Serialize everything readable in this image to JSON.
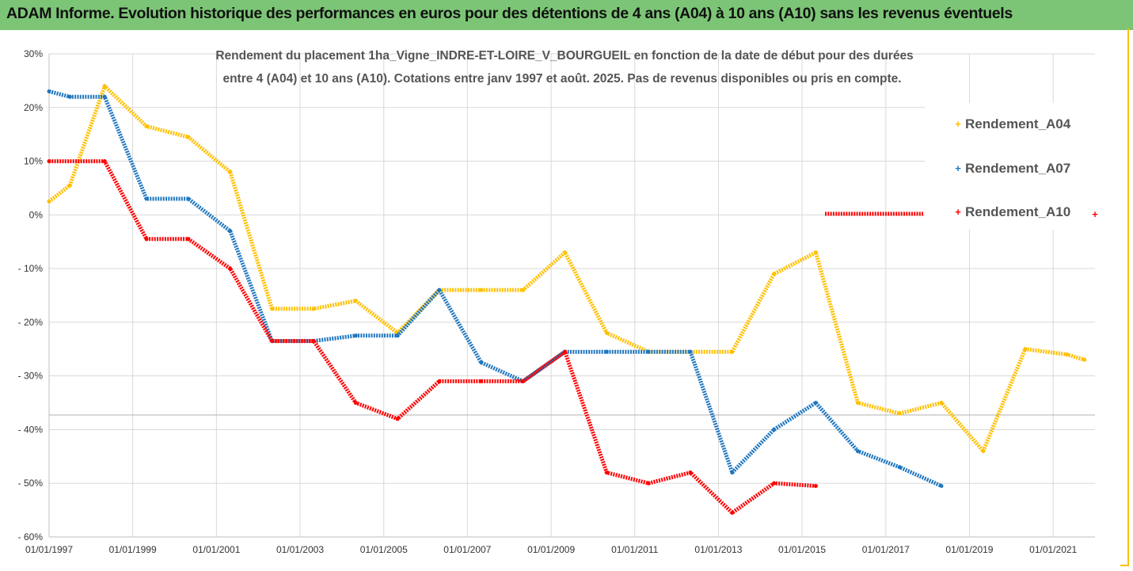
{
  "header": {
    "title": "ADAM Informe. Evolution historique des performances en euros pour des détentions de 4 ans (A04) à 10 ans (A10) sans les revenus éventuels"
  },
  "colors": {
    "header_bg": "#7cc576",
    "A04": "#ffc000",
    "A07": "#1f77c0",
    "A10": "#ff0000",
    "grid": "#d9d9d9"
  },
  "chart_data": {
    "type": "line",
    "subtitle_lines": [
      "Rendement du placement 1ha_Vigne_INDRE-ET-LOIRE_V_BOURGUEIL en fonction de la date de début pour des durées",
      "entre 4 (A04) et 10 ans (A10). Cotations entre janv 1997 et août. 2025. Pas de revenus disponibles ou pris en compte."
    ],
    "x_tick_labels": [
      "01/01/1997",
      "01/01/1999",
      "01/01/2001",
      "01/01/2003",
      "01/01/2005",
      "01/01/2007",
      "01/01/2009",
      "01/01/2011",
      "01/01/2013",
      "01/01/2015",
      "01/01/2017",
      "01/01/2019",
      "01/01/2021"
    ],
    "y_tick_labels": [
      "30%",
      "20%",
      "10%",
      "0%",
      "- 10%",
      "- 20%",
      "- 30%",
      "- 40%",
      "- 50%",
      "- 60%"
    ],
    "xlim": [
      "1997-01-01",
      "2022-01-01"
    ],
    "ylim": [
      -60,
      30
    ],
    "legend_position": "right",
    "series": [
      {
        "name": "Rendement_A04",
        "color": "#ffc000",
        "points": [
          [
            "1997-01-01",
            2.5
          ],
          [
            "1997-07-01",
            5.5
          ],
          [
            "1998-05-01",
            24
          ],
          [
            "1999-05-01",
            16.5
          ],
          [
            "2000-05-01",
            14.5
          ],
          [
            "2001-05-01",
            8
          ],
          [
            "2002-05-01",
            -17.5
          ],
          [
            "2003-05-01",
            -17.5
          ],
          [
            "2004-05-01",
            -16
          ],
          [
            "2005-05-01",
            -22
          ],
          [
            "2006-05-01",
            -14
          ],
          [
            "2007-05-01",
            -14
          ],
          [
            "2008-05-01",
            -14
          ],
          [
            "2009-05-01",
            -7
          ],
          [
            "2010-05-01",
            -22
          ],
          [
            "2011-05-01",
            -25.5
          ],
          [
            "2012-05-01",
            -25.5
          ],
          [
            "2013-05-01",
            -25.5
          ],
          [
            "2014-05-01",
            -11
          ],
          [
            "2015-05-01",
            -7
          ],
          [
            "2016-05-01",
            -35
          ],
          [
            "2017-05-01",
            -37
          ],
          [
            "2018-05-01",
            -35
          ],
          [
            "2019-05-01",
            -44
          ],
          [
            "2020-05-01",
            -25
          ],
          [
            "2021-05-01",
            -26
          ],
          [
            "2021-10-01",
            -27
          ]
        ]
      },
      {
        "name": "Rendement_A07",
        "color": "#1f77c0",
        "points": [
          [
            "1997-01-01",
            23
          ],
          [
            "1997-07-01",
            22
          ],
          [
            "1998-05-01",
            22
          ],
          [
            "1999-05-01",
            3
          ],
          [
            "2000-05-01",
            3
          ],
          [
            "2001-05-01",
            -3
          ],
          [
            "2002-05-01",
            -23.5
          ],
          [
            "2003-05-01",
            -23.5
          ],
          [
            "2004-05-01",
            -22.5
          ],
          [
            "2005-05-01",
            -22.5
          ],
          [
            "2006-05-01",
            -14
          ],
          [
            "2007-05-01",
            -27.5
          ],
          [
            "2008-05-01",
            -31
          ],
          [
            "2009-05-01",
            -25.5
          ],
          [
            "2010-05-01",
            -25.5
          ],
          [
            "2011-05-01",
            -25.5
          ],
          [
            "2012-05-01",
            -25.5
          ],
          [
            "2013-05-01",
            -48
          ],
          [
            "2014-05-01",
            -40
          ],
          [
            "2015-05-01",
            -35
          ],
          [
            "2016-05-01",
            -44
          ],
          [
            "2017-05-01",
            -47
          ],
          [
            "2018-05-01",
            -50.5
          ]
        ]
      },
      {
        "name": "Rendement_A10",
        "color": "#ff0000",
        "points": [
          [
            "1997-01-01",
            10
          ],
          [
            "1998-05-01",
            10
          ],
          [
            "1999-05-01",
            -4.5
          ],
          [
            "2000-05-01",
            -4.5
          ],
          [
            "2001-05-01",
            -10
          ],
          [
            "2002-05-01",
            -23.5
          ],
          [
            "2003-05-01",
            -23.5
          ],
          [
            "2004-05-01",
            -35
          ],
          [
            "2005-05-01",
            -38
          ],
          [
            "2006-05-01",
            -31
          ],
          [
            "2007-05-01",
            -31
          ],
          [
            "2008-05-01",
            -31
          ],
          [
            "2009-05-01",
            -25.5
          ],
          [
            "2010-05-01",
            -48
          ],
          [
            "2011-05-01",
            -50
          ],
          [
            "2012-05-01",
            -48
          ],
          [
            "2013-05-01",
            -55.5
          ],
          [
            "2014-05-01",
            -50
          ],
          [
            "2015-05-01",
            -50.5
          ]
        ]
      }
    ]
  }
}
